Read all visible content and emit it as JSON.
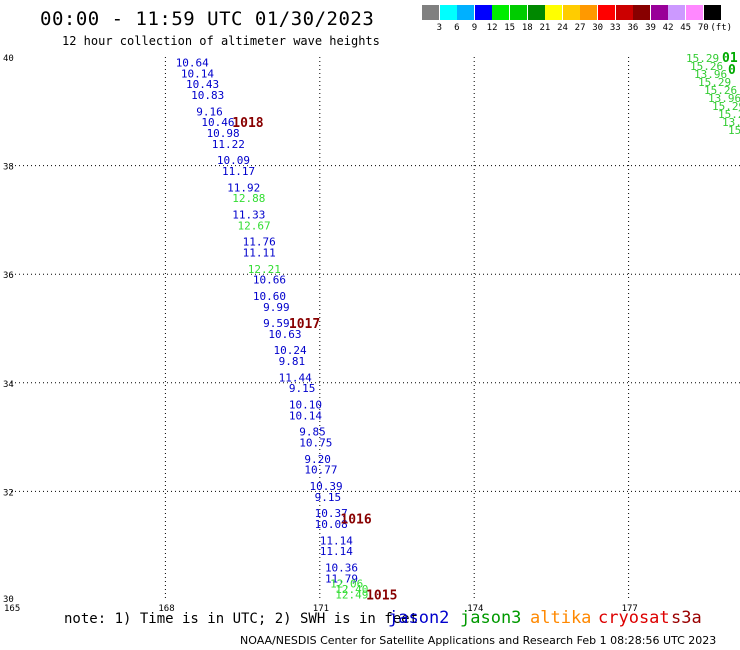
{
  "title": "00:00 - 11:59 UTC 01/30/2023",
  "subtitle": "12 hour collection of altimeter wave heights",
  "colorbar": {
    "colors": [
      "#808080",
      "#00ffff",
      "#00b0ff",
      "#0000ff",
      "#00ee00",
      "#00cc00",
      "#008800",
      "#ffff00",
      "#ffcc00",
      "#ff9900",
      "#ff0000",
      "#cc0000",
      "#880000",
      "#990099",
      "#cc99ff",
      "#ff88ff",
      "#000000"
    ],
    "labels": [
      "3",
      "6",
      "9",
      "12",
      "15",
      "18",
      "21",
      "24",
      "27",
      "30",
      "33",
      "36",
      "39",
      "42",
      "45",
      "70"
    ],
    "unit": "(ft)"
  },
  "footer": {
    "note": "note: 1) Time is in UTC; 2) SWH is in feet",
    "credit": "NOAA/NESDIS Center for Satellite Applications and Research   Feb  1 08:28:56 UTC 2023",
    "satellites": [
      {
        "name": "jason2",
        "color": "#0000cc"
      },
      {
        "name": "jason3",
        "color": "#009900"
      },
      {
        "name": "altika",
        "color": "#ff8800"
      },
      {
        "name": "cryosat",
        "color": "#dd0000"
      },
      {
        "name": "s3a",
        "color": "#990000"
      }
    ]
  },
  "chart_data": {
    "type": "scatter",
    "title": "00:00 - 11:59 UTC 01/30/2023",
    "xlim": [
      165,
      180
    ],
    "ylim": [
      30,
      40
    ],
    "x_ticks": [
      "165",
      "168",
      "171",
      "174",
      "177"
    ],
    "y_ticks": [
      "40",
      "38",
      "36",
      "34",
      "32",
      "30"
    ],
    "grid": true,
    "series": [
      {
        "name": "jason2",
        "color": "#0000cc",
        "points": [
          {
            "lon": 168.2,
            "lat": 39.9,
            "swh": "10.64"
          },
          {
            "lon": 168.3,
            "lat": 39.7,
            "swh": "10.14"
          },
          {
            "lon": 168.4,
            "lat": 39.5,
            "swh": "10.43"
          },
          {
            "lon": 168.5,
            "lat": 39.3,
            "swh": "10.83"
          },
          {
            "lon": 168.6,
            "lat": 39.0,
            "swh": "9.16"
          },
          {
            "lon": 168.7,
            "lat": 38.8,
            "swh": "10.46"
          },
          {
            "lon": 168.8,
            "lat": 38.6,
            "swh": "10.98"
          },
          {
            "lon": 168.9,
            "lat": 38.4,
            "swh": "11.22"
          },
          {
            "lon": 169.0,
            "lat": 38.1,
            "swh": "10.09"
          },
          {
            "lon": 169.1,
            "lat": 37.9,
            "swh": "11.17"
          },
          {
            "lon": 169.2,
            "lat": 37.6,
            "swh": "11.92"
          },
          {
            "lon": 169.3,
            "lat": 37.1,
            "swh": "11.33"
          },
          {
            "lon": 169.5,
            "lat": 36.6,
            "swh": "11.76"
          },
          {
            "lon": 169.5,
            "lat": 36.4,
            "swh": "11.11"
          },
          {
            "lon": 169.7,
            "lat": 35.9,
            "swh": "10.66"
          },
          {
            "lon": 169.7,
            "lat": 35.6,
            "swh": "10.60"
          },
          {
            "lon": 169.9,
            "lat": 35.4,
            "swh": "9.99"
          },
          {
            "lon": 169.9,
            "lat": 35.1,
            "swh": "9.59"
          },
          {
            "lon": 170.0,
            "lat": 34.9,
            "swh": "10.63"
          },
          {
            "lon": 170.1,
            "lat": 34.6,
            "swh": "10.24"
          },
          {
            "lon": 170.2,
            "lat": 34.4,
            "swh": "9.81"
          },
          {
            "lon": 170.2,
            "lat": 34.1,
            "swh": "11.44"
          },
          {
            "lon": 170.4,
            "lat": 33.9,
            "swh": "9.15"
          },
          {
            "lon": 170.4,
            "lat": 33.6,
            "swh": "10.10"
          },
          {
            "lon": 170.4,
            "lat": 33.4,
            "swh": "10.14"
          },
          {
            "lon": 170.6,
            "lat": 33.1,
            "swh": "9.85"
          },
          {
            "lon": 170.6,
            "lat": 32.9,
            "swh": "10.75"
          },
          {
            "lon": 170.7,
            "lat": 32.6,
            "swh": "9.20"
          },
          {
            "lon": 170.7,
            "lat": 32.4,
            "swh": "10.77"
          },
          {
            "lon": 170.8,
            "lat": 32.1,
            "swh": "10.39"
          },
          {
            "lon": 170.9,
            "lat": 31.9,
            "swh": "9.15"
          },
          {
            "lon": 170.9,
            "lat": 31.6,
            "swh": "10.37"
          },
          {
            "lon": 170.9,
            "lat": 31.4,
            "swh": "10.08"
          },
          {
            "lon": 171.0,
            "lat": 31.1,
            "swh": "11.14"
          },
          {
            "lon": 171.0,
            "lat": 30.9,
            "swh": "11.14"
          },
          {
            "lon": 171.1,
            "lat": 30.6,
            "swh": "10.36"
          },
          {
            "lon": 171.1,
            "lat": 30.4,
            "swh": "11.79"
          }
        ]
      },
      {
        "name": "jason3",
        "color": "#33dd33",
        "points": [
          {
            "lon": 169.3,
            "lat": 37.4,
            "swh": "12.88"
          },
          {
            "lon": 169.4,
            "lat": 36.9,
            "swh": "12.67"
          },
          {
            "lon": 169.6,
            "lat": 36.1,
            "swh": "12.21"
          },
          {
            "lon": 171.2,
            "lat": 30.3,
            "swh": "12.06"
          },
          {
            "lon": 171.3,
            "lat": 30.2,
            "swh": "12.40"
          },
          {
            "lon": 171.3,
            "lat": 30.1,
            "swh": "12.49"
          }
        ]
      }
    ],
    "pressure_labels": [
      {
        "lon": 169.3,
        "lat": 38.8,
        "value": "1018"
      },
      {
        "lon": 170.4,
        "lat": 35.1,
        "value": "1017"
      },
      {
        "lon": 171.4,
        "lat": 31.5,
        "value": "1016"
      },
      {
        "lon": 171.9,
        "lat": 30.1,
        "value": "1015"
      }
    ],
    "corner_cluster": {
      "color": "#00aa00",
      "visible_values": [
        "15.29",
        "15.26",
        "13.96"
      ],
      "visible_labels": [
        "01",
        "0"
      ]
    }
  }
}
